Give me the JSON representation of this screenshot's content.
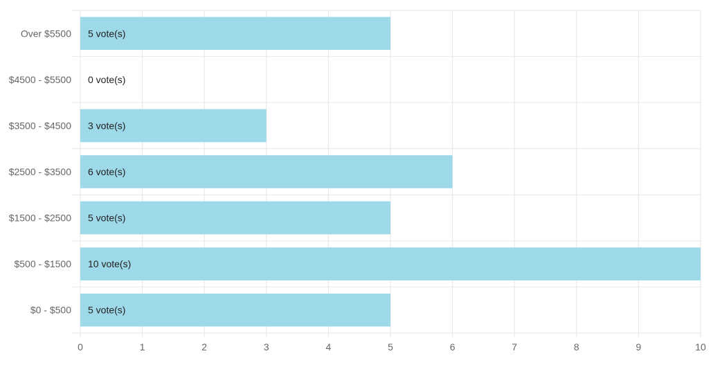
{
  "chart_data": {
    "type": "bar",
    "orientation": "horizontal",
    "categories": [
      "Over $5500",
      "$4500 - $5500",
      "$3500 - $4500",
      "$2500 - $3500",
      "$1500 - $2500",
      "$500 - $1500",
      "$0 - $500"
    ],
    "values": [
      5,
      0,
      3,
      6,
      5,
      10,
      5
    ],
    "data_labels": [
      "5 vote(s)",
      "0 vote(s)",
      "3 vote(s)",
      "6 vote(s)",
      "5 vote(s)",
      "10 vote(s)",
      "5 vote(s)"
    ],
    "x_ticks": [
      "0",
      "1",
      "2",
      "3",
      "4",
      "5",
      "6",
      "7",
      "8",
      "9",
      "10"
    ],
    "xlim": [
      0,
      10
    ],
    "title": "",
    "xlabel": "",
    "ylabel": "",
    "grid": true,
    "legend": "none",
    "colors": {
      "bar": "#9dd9e8",
      "grid": "#e6e6e6",
      "text": "#666666",
      "label": "#222222"
    }
  }
}
